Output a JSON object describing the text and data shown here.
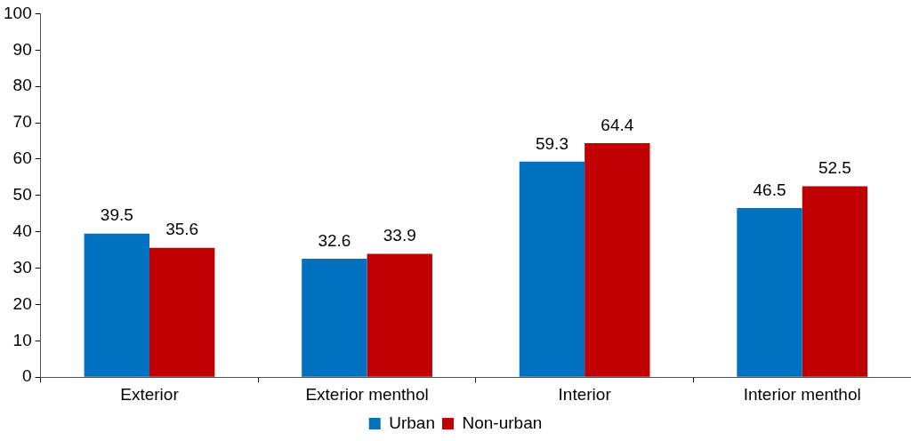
{
  "chart_data": {
    "type": "bar",
    "categories": [
      "Exterior",
      "Exterior menthol",
      "Interior",
      "Interior menthol"
    ],
    "series": [
      {
        "name": "Urban",
        "color": "#0070c0",
        "values": [
          39.5,
          32.6,
          59.3,
          46.5
        ]
      },
      {
        "name": "Non-urban",
        "color": "#c00000",
        "values": [
          35.6,
          33.9,
          64.4,
          52.5
        ]
      }
    ],
    "ylim": [
      0,
      100
    ],
    "yticks": [
      0,
      10,
      20,
      30,
      40,
      50,
      60,
      70,
      80,
      90,
      100
    ],
    "grid": false,
    "legend": "bottom",
    "data_labels": true
  }
}
